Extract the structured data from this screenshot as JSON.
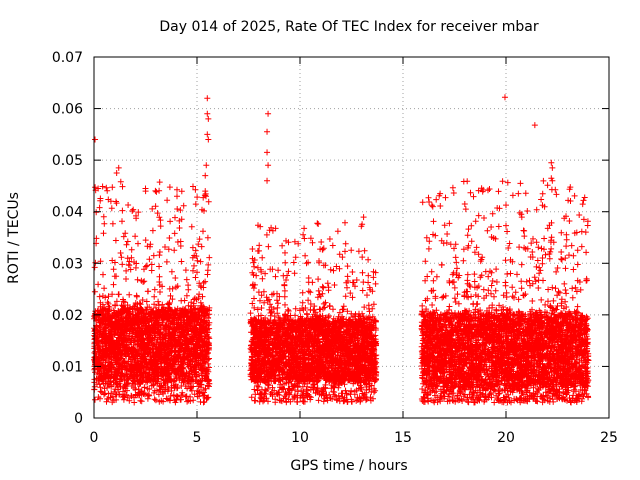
{
  "chart_data": {
    "type": "scatter",
    "title": "Day 014 of 2025, Rate Of TEC Index for receiver mbar",
    "xlabel": "GPS time / hours",
    "ylabel": "ROTI / TECUs",
    "xlim": [
      0,
      25
    ],
    "ylim": [
      0,
      0.07
    ],
    "x_ticks": [
      0,
      5,
      10,
      15,
      20,
      25
    ],
    "x_tick_labels": [
      "0",
      "5",
      "10",
      "15",
      "20",
      "25"
    ],
    "y_ticks": [
      0,
      0.01,
      0.02,
      0.03,
      0.04,
      0.05,
      0.06,
      0.07
    ],
    "y_tick_labels": [
      "0",
      "0.01",
      "0.02",
      "0.03",
      "0.04",
      "0.05",
      "0.06",
      "0.07"
    ],
    "grid": true,
    "marker": "+",
    "color": "#ff0000",
    "data_segments": [
      {
        "x_start": 0.0,
        "x_end": 5.6,
        "y_low": 0.003,
        "y_core_low": 0.007,
        "y_core_high": 0.021,
        "y_high": 0.046
      },
      {
        "x_start": 7.6,
        "x_end": 13.7,
        "y_low": 0.003,
        "y_core_low": 0.007,
        "y_core_high": 0.019,
        "y_high": 0.039
      },
      {
        "x_start": 15.9,
        "x_end": 24.0,
        "y_low": 0.003,
        "y_core_low": 0.006,
        "y_core_high": 0.02,
        "y_high": 0.046
      }
    ],
    "outliers": [
      {
        "x": 0.05,
        "y": 0.054
      },
      {
        "x": 5.5,
        "y": 0.062
      },
      {
        "x": 5.5,
        "y": 0.059
      },
      {
        "x": 5.55,
        "y": 0.058
      },
      {
        "x": 5.5,
        "y": 0.055
      },
      {
        "x": 5.55,
        "y": 0.054
      },
      {
        "x": 5.45,
        "y": 0.049
      },
      {
        "x": 5.4,
        "y": 0.047
      },
      {
        "x": 5.4,
        "y": 0.044
      },
      {
        "x": 8.45,
        "y": 0.059
      },
      {
        "x": 8.4,
        "y": 0.0555
      },
      {
        "x": 8.4,
        "y": 0.0515
      },
      {
        "x": 8.45,
        "y": 0.049
      },
      {
        "x": 8.4,
        "y": 0.046
      },
      {
        "x": 19.95,
        "y": 0.0622
      },
      {
        "x": 21.4,
        "y": 0.0568
      },
      {
        "x": 22.2,
        "y": 0.0495
      },
      {
        "x": 22.25,
        "y": 0.0485
      },
      {
        "x": 22.2,
        "y": 0.0465
      },
      {
        "x": 22.25,
        "y": 0.046
      },
      {
        "x": 20.7,
        "y": 0.0455
      },
      {
        "x": 20.6,
        "y": 0.0435
      },
      {
        "x": 18.0,
        "y": 0.0415
      },
      {
        "x": 18.05,
        "y": 0.0405
      },
      {
        "x": 1.1,
        "y": 0.0475
      },
      {
        "x": 1.2,
        "y": 0.0485
      },
      {
        "x": 2.5,
        "y": 0.0445
      },
      {
        "x": 0.2,
        "y": 0.0445
      }
    ]
  }
}
